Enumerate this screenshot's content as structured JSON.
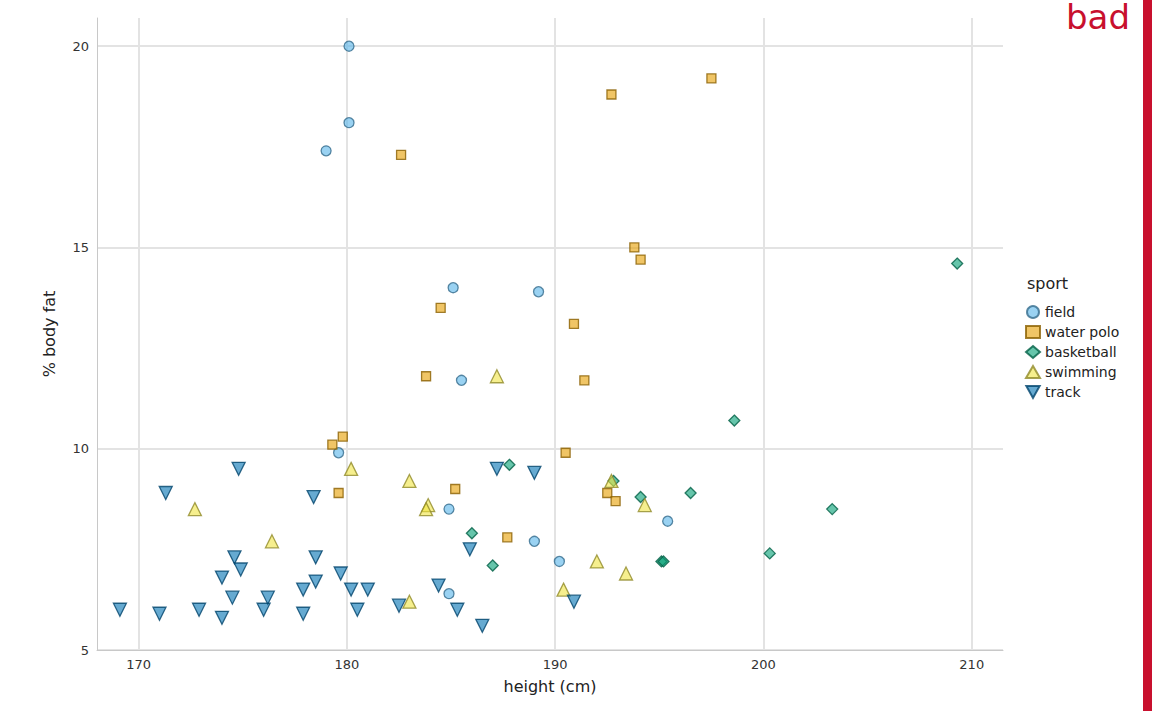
{
  "chart_data": {
    "type": "scatter",
    "annotation": "bad",
    "x_label": "height (cm)",
    "y_label": "% body fat",
    "legend_title": "sport",
    "legend": "right",
    "grid": true,
    "xlim": [
      168,
      211.5
    ],
    "xticks": [
      170,
      180,
      190,
      200,
      210
    ],
    "ylim": [
      5,
      20.7
    ],
    "yticks": [
      5,
      10,
      15,
      20
    ],
    "series": [
      {
        "name": "field",
        "color": "#56B4E9",
        "marker": "circle",
        "x": [
          180.1,
          180.1,
          179.0,
          185.1,
          189.2,
          185.5,
          179.6,
          184.9,
          189.0,
          195.4,
          190.2,
          184.9
        ],
        "values": [
          20.0,
          18.1,
          17.4,
          14.0,
          13.9,
          11.7,
          9.9,
          8.5,
          7.7,
          8.2,
          7.2,
          6.4
        ]
      },
      {
        "name": "water polo",
        "color": "#E69F00",
        "marker": "square",
        "x": [
          197.5,
          192.7,
          182.6,
          193.8,
          194.1,
          184.5,
          190.9,
          191.4,
          183.8,
          179.8,
          179.3,
          190.5,
          185.2,
          179.6,
          192.5,
          192.9,
          187.7
        ],
        "values": [
          19.2,
          18.8,
          17.3,
          15.0,
          14.7,
          13.5,
          13.1,
          11.7,
          11.8,
          10.3,
          10.1,
          9.9,
          9.0,
          8.9,
          8.9,
          8.7,
          7.8
        ]
      },
      {
        "name": "basketball",
        "color": "#009E73",
        "marker": "diamond",
        "x": [
          209.3,
          198.6,
          187.8,
          192.8,
          194.1,
          196.5,
          203.3,
          186.0,
          187.0,
          195.1,
          195.2,
          200.3
        ],
        "values": [
          14.6,
          10.7,
          9.6,
          9.2,
          8.8,
          8.9,
          8.5,
          7.9,
          7.1,
          7.2,
          7.2,
          7.4
        ]
      },
      {
        "name": "swimming",
        "color": "#F0E442",
        "marker": "triangle",
        "x": [
          187.2,
          180.2,
          183.0,
          192.7,
          172.7,
          183.9,
          183.8,
          194.3,
          176.4,
          192.0,
          193.4,
          190.4,
          183.0
        ],
        "values": [
          11.8,
          9.5,
          9.2,
          9.2,
          8.5,
          8.6,
          8.5,
          8.6,
          7.7,
          7.2,
          6.9,
          6.5,
          6.2
        ]
      },
      {
        "name": "track",
        "color": "#0072B2",
        "marker": "triangle-down",
        "x": [
          169.1,
          171.0,
          171.3,
          172.9,
          174.0,
          174.0,
          174.6,
          174.9,
          174.5,
          174.8,
          176.0,
          176.2,
          177.9,
          177.9,
          178.4,
          178.5,
          178.5,
          179.7,
          180.2,
          181.0,
          180.5,
          182.5,
          184.4,
          185.3,
          185.9,
          186.5,
          187.2,
          189.0,
          190.9
        ],
        "values": [
          6.0,
          5.9,
          8.9,
          6.0,
          5.8,
          6.8,
          7.3,
          7.0,
          6.3,
          9.5,
          6.0,
          6.3,
          6.5,
          5.9,
          8.8,
          6.7,
          7.3,
          6.9,
          6.5,
          6.5,
          6.0,
          6.1,
          6.6,
          6.0,
          7.5,
          5.6,
          9.5,
          9.4,
          6.2
        ]
      }
    ]
  }
}
